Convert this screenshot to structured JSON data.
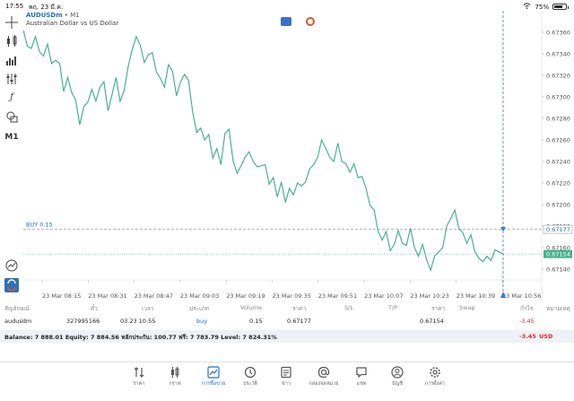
{
  "status_bar": {
    "time": "17:55",
    "date": "พฤ. 23 มี.ค.",
    "battery": "75%",
    "battery_level": 0.75
  },
  "chart_header": {
    "symbol": "AUDUSDm",
    "timeframe": "M1",
    "description": "Australian Dollar vs US Dollar"
  },
  "toolbar": {
    "timeframe_label": "M1"
  },
  "chart_data": {
    "type": "line",
    "ylim": [
      0.6713,
      0.6738
    ],
    "y_ticks": [
      "0.67360",
      "0.67340",
      "0.67320",
      "0.67300",
      "0.67280",
      "0.67260",
      "0.67240",
      "0.67220",
      "0.67200",
      "0.67180",
      "0.67160",
      "0.67140"
    ],
    "x_ticks": [
      "23 Mar 08:15",
      "23 Mar 08:31",
      "23 Mar 08:47",
      "23 Mar 09:03",
      "23 Mar 09:19",
      "23 Mar 09:35",
      "23 Mar 09:51",
      "23 Mar 10:07",
      "23 Mar 10:23",
      "23 Mar 10:39",
      "23 Mar 10:56"
    ],
    "close": [
      0.67362,
      0.67347,
      0.67345,
      0.67356,
      0.67342,
      0.67338,
      0.67349,
      0.67331,
      0.67334,
      0.67331,
      0.67305,
      0.67318,
      0.67304,
      0.67297,
      0.67274,
      0.67291,
      0.67295,
      0.67307,
      0.67296,
      0.67309,
      0.67314,
      0.67287,
      0.67302,
      0.67318,
      0.67296,
      0.67306,
      0.67328,
      0.67344,
      0.67356,
      0.67348,
      0.67332,
      0.67339,
      0.67341,
      0.67323,
      0.67317,
      0.67309,
      0.6733,
      0.67324,
      0.67301,
      0.67314,
      0.67321,
      0.67315,
      0.67286,
      0.67267,
      0.67271,
      0.6726,
      0.67265,
      0.67243,
      0.67252,
      0.67237,
      0.67266,
      0.6727,
      0.67241,
      0.67229,
      0.67236,
      0.67244,
      0.67249,
      0.6724,
      0.67235,
      0.67236,
      0.67237,
      0.67219,
      0.67225,
      0.67207,
      0.67221,
      0.67202,
      0.67215,
      0.67209,
      0.6722,
      0.67217,
      0.67221,
      0.67233,
      0.67237,
      0.67244,
      0.6726,
      0.67252,
      0.67244,
      0.6724,
      0.67257,
      0.6724,
      0.67238,
      0.6723,
      0.67238,
      0.67225,
      0.67226,
      0.67215,
      0.67199,
      0.67195,
      0.67175,
      0.67167,
      0.67175,
      0.67157,
      0.67163,
      0.67176,
      0.67164,
      0.67162,
      0.67178,
      0.6716,
      0.67152,
      0.67163,
      0.67149,
      0.67139,
      0.67152,
      0.67156,
      0.6716,
      0.6718,
      0.67187,
      0.67195,
      0.67178,
      0.67174,
      0.67164,
      0.67172,
      0.67156,
      0.6715,
      0.67147,
      0.67152,
      0.67148,
      0.67158,
      0.67156,
      0.67154
    ],
    "bid_price": "0.67154",
    "trade_line": {
      "label": "BUY 0.15",
      "price": "0.67177"
    }
  },
  "positions": {
    "headers": [
      "สัญลักษณ์",
      "ตั๋ว",
      "เวลา",
      "ประเภท",
      "Volume",
      "ราคา",
      "S/L",
      "T/P",
      "ราคา",
      "Swap",
      "กำไร",
      "หมายเหตุ"
    ],
    "rows": [
      {
        "symbol": "audusdm",
        "ticket": "327995166",
        "time": "03.23 10:55",
        "type": "buy",
        "volume": "0.15",
        "open_price": "0.67177",
        "sl": "",
        "tp": "",
        "price": "0.67154",
        "swap": "",
        "profit": "-3.45",
        "comment": ""
      }
    ]
  },
  "balance_bar": {
    "summary": "Balance: 7 888.01  Equity: 7 884.56  หลักประกัน: 100.77  ฟรี: 7 783.79  Level: 7 824.31%",
    "profit": "-3.45",
    "currency": "USD"
  },
  "tabs": [
    {
      "label": "ราคา",
      "icon": "quotes-icon"
    },
    {
      "label": "กราฟ",
      "icon": "candles-icon"
    },
    {
      "label": "การซื้อขาย",
      "icon": "trade-icon",
      "active": true
    },
    {
      "label": "ประวัติ",
      "icon": "history-icon"
    },
    {
      "label": "ข่าว",
      "icon": "news-icon"
    },
    {
      "label": "กล่องจดหมาย",
      "icon": "mail-icon"
    },
    {
      "label": "แชท",
      "icon": "chat-icon"
    },
    {
      "label": "บัญชี",
      "icon": "account-icon"
    },
    {
      "label": "การตั้งค่า",
      "icon": "settings-icon"
    }
  ],
  "colors": {
    "line": "#49b28d",
    "accent": "#1f6fc6",
    "loss": "#d92a2a",
    "price_tag": "#49b28d"
  }
}
